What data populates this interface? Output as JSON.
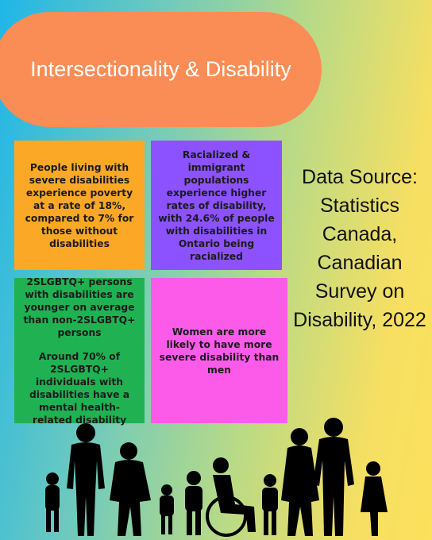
{
  "title": "Intersectionality & Disability",
  "boxes": [
    {
      "paragraphs": [
        "People living with severe disabilities experience poverty at a rate of 18%, compared to 7% for those without disabilities"
      ]
    },
    {
      "paragraphs": [
        "Racialized & immigrant populations experience higher rates of disability, with 24.6% of people with disabilities in Ontario being racialized"
      ]
    },
    {
      "paragraphs": [
        "2SLGBTQ+ persons with disabilities are younger on average than non-2SLGBTQ+ persons",
        "Around 70% of 2SLGBTQ+ individuals with disabilities have a mental health-related disability"
      ]
    },
    {
      "paragraphs": [
        "Women are more likely to have more severe disability than men"
      ]
    }
  ],
  "source": "Data Source: Statistics Canada, Canadian Survey on Disability, 2022"
}
